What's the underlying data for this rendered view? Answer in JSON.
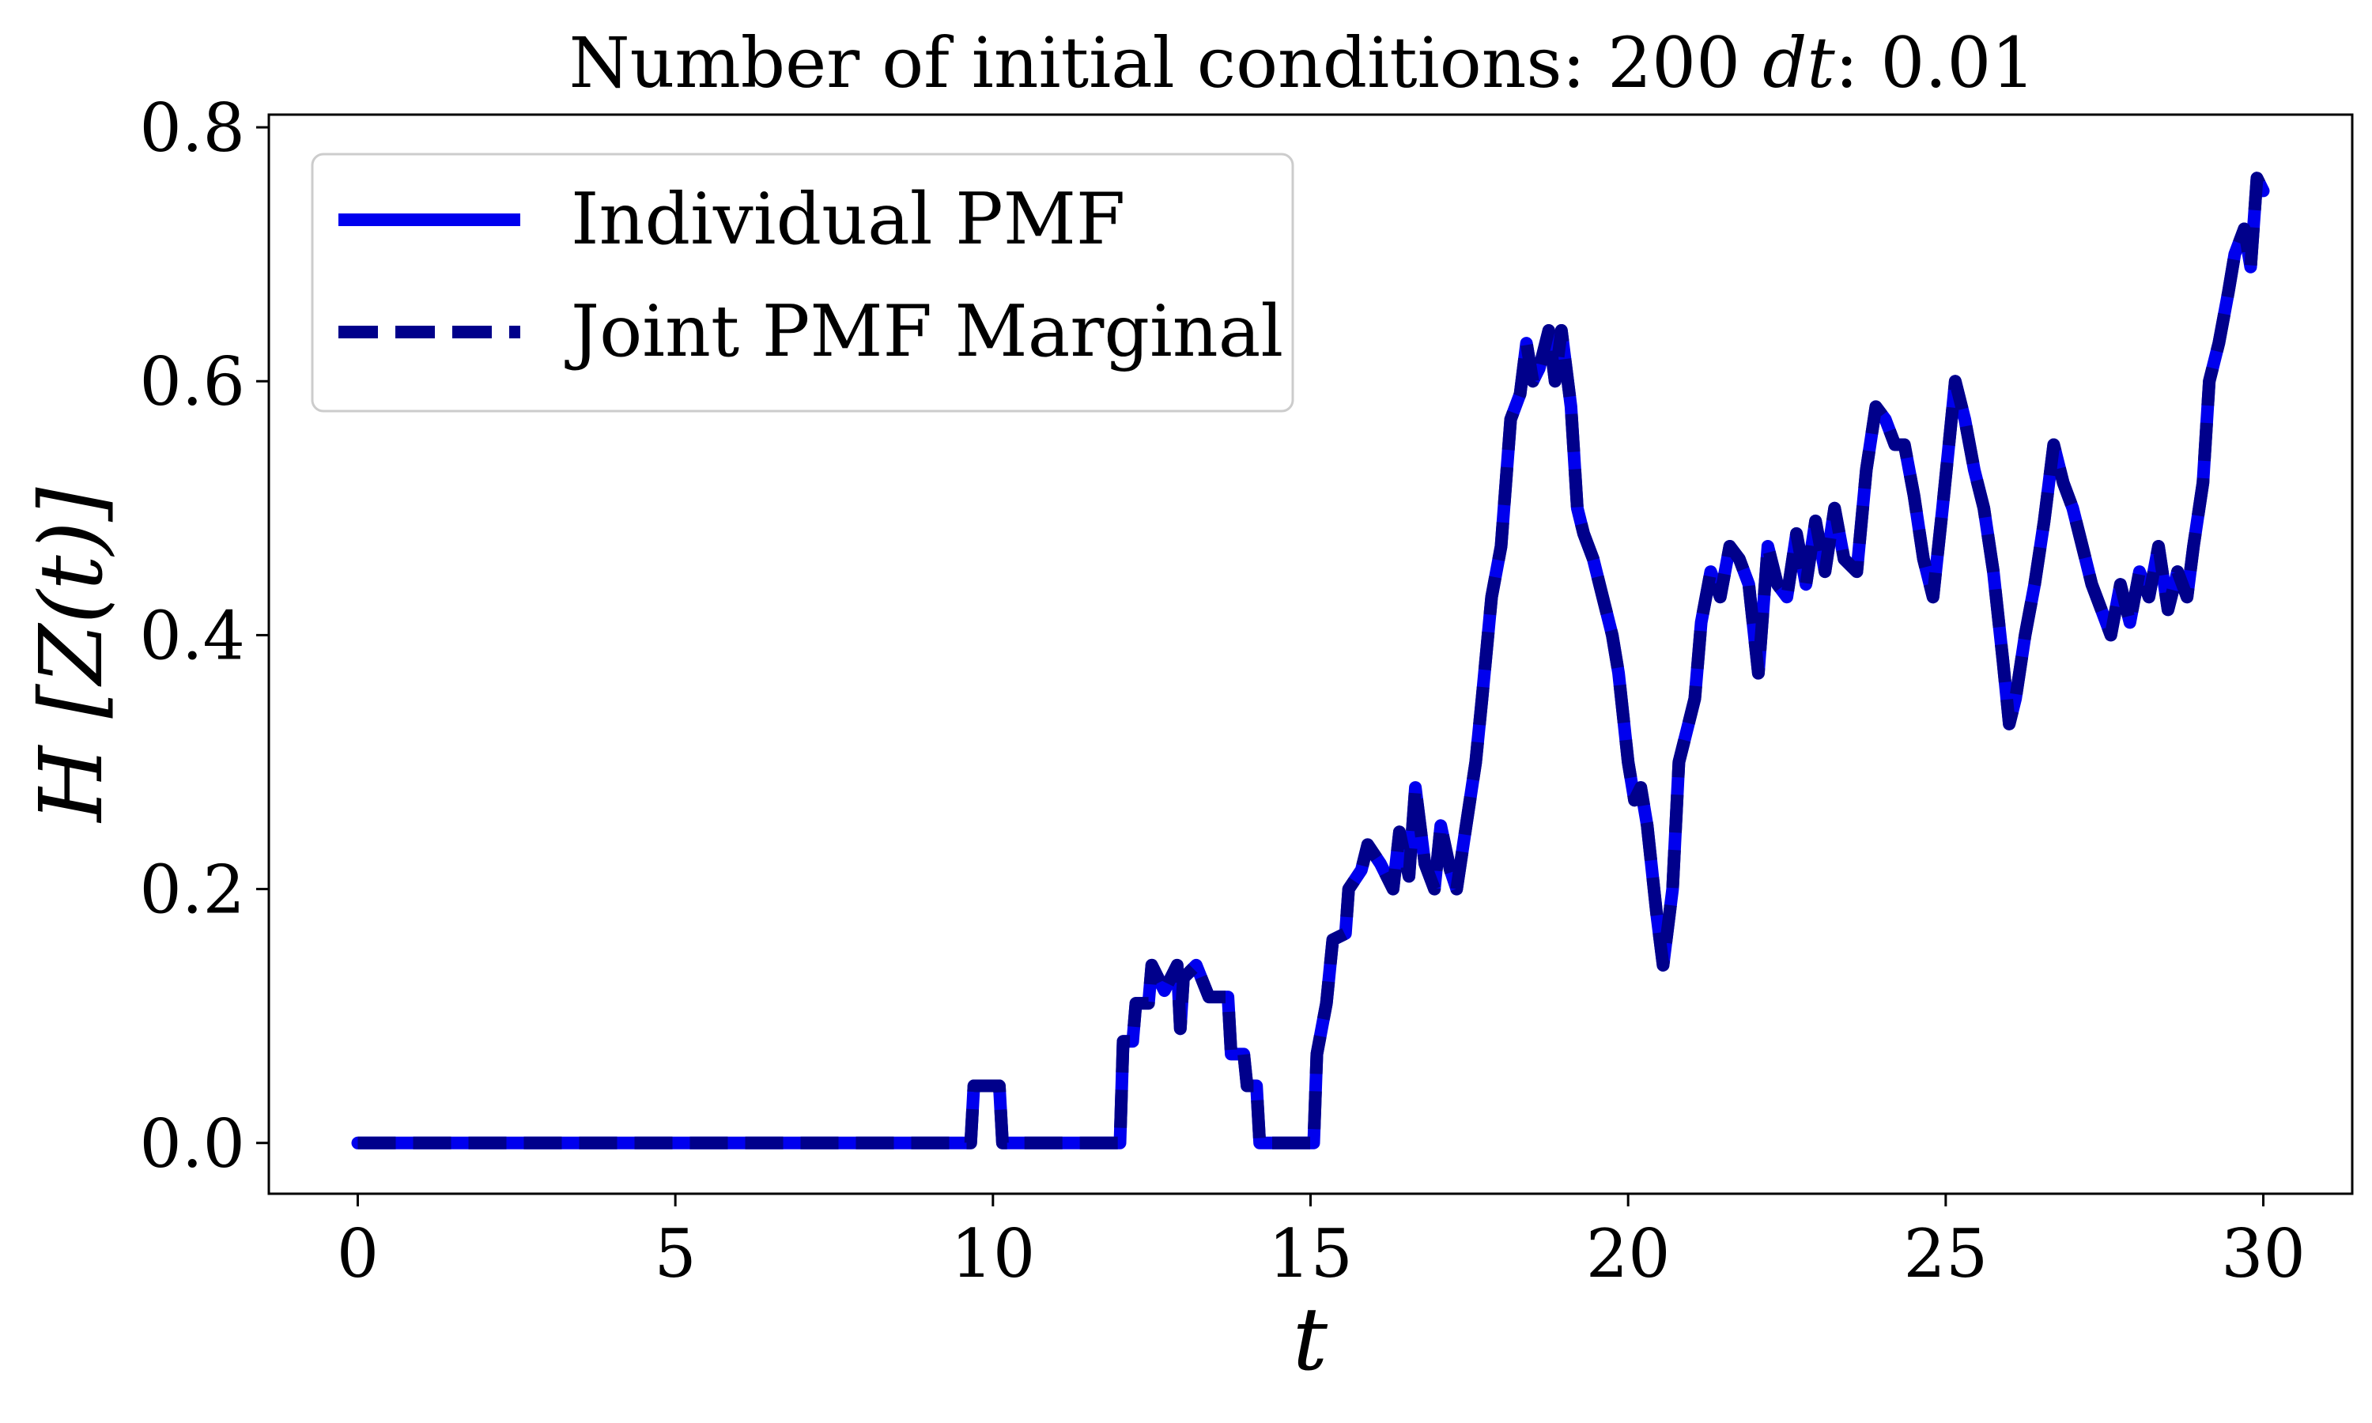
{
  "chart_data": {
    "type": "line",
    "title": {
      "prefix": "Number of initial conditions: 200 ",
      "var": "dt",
      "suffix": ": 0.01"
    },
    "xlabel": "t",
    "ylabel": "H [Z(t)]",
    "xlim": [
      -1.4,
      31.4
    ],
    "ylim": [
      -0.04,
      0.81
    ],
    "xticks": [
      0,
      5,
      10,
      15,
      20,
      25,
      30
    ],
    "xtick_labels": [
      "0",
      "5",
      "10",
      "15",
      "20",
      "25",
      "30"
    ],
    "yticks": [
      0.0,
      0.2,
      0.4,
      0.6,
      0.8
    ],
    "ytick_labels": [
      "0.0",
      "0.2",
      "0.4",
      "0.6",
      "0.8"
    ],
    "grid": false,
    "legend_position": "top-left",
    "series": [
      {
        "name": "Individual PMF",
        "color": "#0000ee",
        "style": "solid",
        "points": [
          [
            0,
            0
          ],
          [
            9.65,
            0
          ],
          [
            9.7,
            0.045
          ],
          [
            10.1,
            0.045
          ],
          [
            10.15,
            0
          ],
          [
            12.0,
            0
          ],
          [
            12.05,
            0.08
          ],
          [
            12.2,
            0.08
          ],
          [
            12.25,
            0.11
          ],
          [
            12.45,
            0.11
          ],
          [
            12.5,
            0.14
          ],
          [
            12.7,
            0.12
          ],
          [
            12.9,
            0.14
          ],
          [
            12.95,
            0.09
          ],
          [
            13.0,
            0.13
          ],
          [
            13.2,
            0.14
          ],
          [
            13.4,
            0.115
          ],
          [
            13.7,
            0.115
          ],
          [
            13.75,
            0.07
          ],
          [
            13.95,
            0.07
          ],
          [
            14.0,
            0.045
          ],
          [
            14.15,
            0.045
          ],
          [
            14.2,
            0
          ],
          [
            15.05,
            0
          ],
          [
            15.1,
            0.07
          ],
          [
            15.25,
            0.11
          ],
          [
            15.35,
            0.16
          ],
          [
            15.55,
            0.165
          ],
          [
            15.6,
            0.2
          ],
          [
            15.8,
            0.215
          ],
          [
            15.9,
            0.235
          ],
          [
            16.1,
            0.22
          ],
          [
            16.3,
            0.2
          ],
          [
            16.4,
            0.245
          ],
          [
            16.55,
            0.21
          ],
          [
            16.65,
            0.28
          ],
          [
            16.8,
            0.22
          ],
          [
            16.95,
            0.2
          ],
          [
            17.05,
            0.25
          ],
          [
            17.2,
            0.215
          ],
          [
            17.3,
            0.2
          ],
          [
            17.45,
            0.25
          ],
          [
            17.6,
            0.3
          ],
          [
            17.7,
            0.35
          ],
          [
            17.85,
            0.43
          ],
          [
            18.0,
            0.47
          ],
          [
            18.15,
            0.57
          ],
          [
            18.3,
            0.59
          ],
          [
            18.4,
            0.63
          ],
          [
            18.5,
            0.6
          ],
          [
            18.6,
            0.61
          ],
          [
            18.75,
            0.64
          ],
          [
            18.85,
            0.6
          ],
          [
            18.95,
            0.64
          ],
          [
            19.1,
            0.58
          ],
          [
            19.2,
            0.5
          ],
          [
            19.3,
            0.48
          ],
          [
            19.45,
            0.46
          ],
          [
            19.6,
            0.43
          ],
          [
            19.75,
            0.4
          ],
          [
            19.85,
            0.37
          ],
          [
            20.0,
            0.3
          ],
          [
            20.1,
            0.27
          ],
          [
            20.2,
            0.28
          ],
          [
            20.3,
            0.25
          ],
          [
            20.45,
            0.18
          ],
          [
            20.55,
            0.14
          ],
          [
            20.7,
            0.2
          ],
          [
            20.8,
            0.3
          ],
          [
            20.95,
            0.33
          ],
          [
            21.05,
            0.35
          ],
          [
            21.15,
            0.41
          ],
          [
            21.3,
            0.45
          ],
          [
            21.45,
            0.43
          ],
          [
            21.6,
            0.47
          ],
          [
            21.75,
            0.46
          ],
          [
            21.9,
            0.44
          ],
          [
            22.05,
            0.37
          ],
          [
            22.2,
            0.47
          ],
          [
            22.35,
            0.44
          ],
          [
            22.5,
            0.43
          ],
          [
            22.65,
            0.48
          ],
          [
            22.8,
            0.44
          ],
          [
            22.95,
            0.49
          ],
          [
            23.1,
            0.45
          ],
          [
            23.25,
            0.5
          ],
          [
            23.4,
            0.46
          ],
          [
            23.6,
            0.45
          ],
          [
            23.75,
            0.53
          ],
          [
            23.9,
            0.58
          ],
          [
            24.05,
            0.57
          ],
          [
            24.2,
            0.55
          ],
          [
            24.35,
            0.55
          ],
          [
            24.5,
            0.51
          ],
          [
            24.65,
            0.46
          ],
          [
            24.8,
            0.43
          ],
          [
            24.95,
            0.5
          ],
          [
            25.05,
            0.55
          ],
          [
            25.15,
            0.6
          ],
          [
            25.3,
            0.57
          ],
          [
            25.45,
            0.53
          ],
          [
            25.6,
            0.5
          ],
          [
            25.75,
            0.45
          ],
          [
            25.9,
            0.38
          ],
          [
            26.0,
            0.33
          ],
          [
            26.1,
            0.35
          ],
          [
            26.25,
            0.4
          ],
          [
            26.4,
            0.44
          ],
          [
            26.55,
            0.49
          ],
          [
            26.7,
            0.55
          ],
          [
            26.85,
            0.52
          ],
          [
            27.0,
            0.5
          ],
          [
            27.15,
            0.47
          ],
          [
            27.3,
            0.44
          ],
          [
            27.45,
            0.42
          ],
          [
            27.6,
            0.4
          ],
          [
            27.75,
            0.44
          ],
          [
            27.9,
            0.41
          ],
          [
            28.05,
            0.45
          ],
          [
            28.2,
            0.43
          ],
          [
            28.35,
            0.47
          ],
          [
            28.5,
            0.42
          ],
          [
            28.65,
            0.45
          ],
          [
            28.8,
            0.43
          ],
          [
            28.9,
            0.47
          ],
          [
            29.05,
            0.52
          ],
          [
            29.15,
            0.6
          ],
          [
            29.3,
            0.63
          ],
          [
            29.45,
            0.67
          ],
          [
            29.55,
            0.7
          ],
          [
            29.7,
            0.72
          ],
          [
            29.8,
            0.69
          ],
          [
            29.9,
            0.76
          ],
          [
            30.0,
            0.75
          ]
        ]
      },
      {
        "name": "Joint PMF Marginal",
        "color": "#00008b",
        "style": "dashed",
        "points": [
          [
            0,
            0
          ],
          [
            9.65,
            0
          ],
          [
            9.7,
            0.045
          ],
          [
            10.1,
            0.045
          ],
          [
            10.15,
            0
          ],
          [
            12.0,
            0
          ],
          [
            12.05,
            0.08
          ],
          [
            12.2,
            0.08
          ],
          [
            12.25,
            0.11
          ],
          [
            12.45,
            0.11
          ],
          [
            12.5,
            0.14
          ],
          [
            12.7,
            0.12
          ],
          [
            12.9,
            0.14
          ],
          [
            12.95,
            0.09
          ],
          [
            13.0,
            0.13
          ],
          [
            13.2,
            0.14
          ],
          [
            13.4,
            0.115
          ],
          [
            13.7,
            0.115
          ],
          [
            13.75,
            0.07
          ],
          [
            13.95,
            0.07
          ],
          [
            14.0,
            0.045
          ],
          [
            14.15,
            0.045
          ],
          [
            14.2,
            0
          ],
          [
            15.05,
            0
          ],
          [
            15.1,
            0.07
          ],
          [
            15.25,
            0.11
          ],
          [
            15.35,
            0.16
          ],
          [
            15.55,
            0.165
          ],
          [
            15.6,
            0.2
          ],
          [
            15.8,
            0.215
          ],
          [
            15.9,
            0.235
          ],
          [
            16.1,
            0.22
          ],
          [
            16.3,
            0.2
          ],
          [
            16.4,
            0.245
          ],
          [
            16.55,
            0.21
          ],
          [
            16.65,
            0.28
          ],
          [
            16.8,
            0.22
          ],
          [
            16.95,
            0.2
          ],
          [
            17.05,
            0.25
          ],
          [
            17.2,
            0.215
          ],
          [
            17.3,
            0.2
          ],
          [
            17.45,
            0.25
          ],
          [
            17.6,
            0.3
          ],
          [
            17.7,
            0.35
          ],
          [
            17.85,
            0.43
          ],
          [
            18.0,
            0.47
          ],
          [
            18.15,
            0.57
          ],
          [
            18.3,
            0.59
          ],
          [
            18.4,
            0.63
          ],
          [
            18.5,
            0.6
          ],
          [
            18.6,
            0.61
          ],
          [
            18.75,
            0.64
          ],
          [
            18.85,
            0.6
          ],
          [
            18.95,
            0.64
          ],
          [
            19.1,
            0.58
          ],
          [
            19.2,
            0.5
          ],
          [
            19.3,
            0.48
          ],
          [
            19.45,
            0.46
          ],
          [
            19.6,
            0.43
          ],
          [
            19.75,
            0.4
          ],
          [
            19.85,
            0.37
          ],
          [
            20.0,
            0.3
          ],
          [
            20.1,
            0.27
          ],
          [
            20.2,
            0.28
          ],
          [
            20.3,
            0.25
          ],
          [
            20.45,
            0.18
          ],
          [
            20.55,
            0.14
          ],
          [
            20.7,
            0.2
          ],
          [
            20.8,
            0.3
          ],
          [
            20.95,
            0.33
          ],
          [
            21.05,
            0.35
          ],
          [
            21.15,
            0.41
          ],
          [
            21.3,
            0.45
          ],
          [
            21.45,
            0.43
          ],
          [
            21.6,
            0.47
          ],
          [
            21.75,
            0.46
          ],
          [
            21.9,
            0.44
          ],
          [
            22.05,
            0.37
          ],
          [
            22.2,
            0.47
          ],
          [
            22.35,
            0.44
          ],
          [
            22.5,
            0.43
          ],
          [
            22.65,
            0.48
          ],
          [
            22.8,
            0.44
          ],
          [
            22.95,
            0.49
          ],
          [
            23.1,
            0.45
          ],
          [
            23.25,
            0.5
          ],
          [
            23.4,
            0.46
          ],
          [
            23.6,
            0.45
          ],
          [
            23.75,
            0.53
          ],
          [
            23.9,
            0.58
          ],
          [
            24.05,
            0.57
          ],
          [
            24.2,
            0.55
          ],
          [
            24.35,
            0.55
          ],
          [
            24.5,
            0.51
          ],
          [
            24.65,
            0.46
          ],
          [
            24.8,
            0.43
          ],
          [
            24.95,
            0.5
          ],
          [
            25.05,
            0.55
          ],
          [
            25.15,
            0.6
          ],
          [
            25.3,
            0.57
          ],
          [
            25.45,
            0.53
          ],
          [
            25.6,
            0.5
          ],
          [
            25.75,
            0.45
          ],
          [
            25.9,
            0.38
          ],
          [
            26.0,
            0.33
          ],
          [
            26.1,
            0.35
          ],
          [
            26.25,
            0.4
          ],
          [
            26.4,
            0.44
          ],
          [
            26.55,
            0.49
          ],
          [
            26.7,
            0.55
          ],
          [
            26.85,
            0.52
          ],
          [
            27.0,
            0.5
          ],
          [
            27.15,
            0.47
          ],
          [
            27.3,
            0.44
          ],
          [
            27.45,
            0.42
          ],
          [
            27.6,
            0.4
          ],
          [
            27.75,
            0.44
          ],
          [
            27.9,
            0.41
          ],
          [
            28.05,
            0.45
          ],
          [
            28.2,
            0.43
          ],
          [
            28.35,
            0.47
          ],
          [
            28.5,
            0.42
          ],
          [
            28.65,
            0.45
          ],
          [
            28.8,
            0.43
          ],
          [
            28.9,
            0.47
          ],
          [
            29.05,
            0.52
          ],
          [
            29.15,
            0.6
          ],
          [
            29.3,
            0.63
          ],
          [
            29.45,
            0.67
          ],
          [
            29.55,
            0.7
          ],
          [
            29.7,
            0.72
          ],
          [
            29.8,
            0.69
          ],
          [
            29.9,
            0.76
          ],
          [
            30.0,
            0.75
          ]
        ]
      }
    ]
  }
}
